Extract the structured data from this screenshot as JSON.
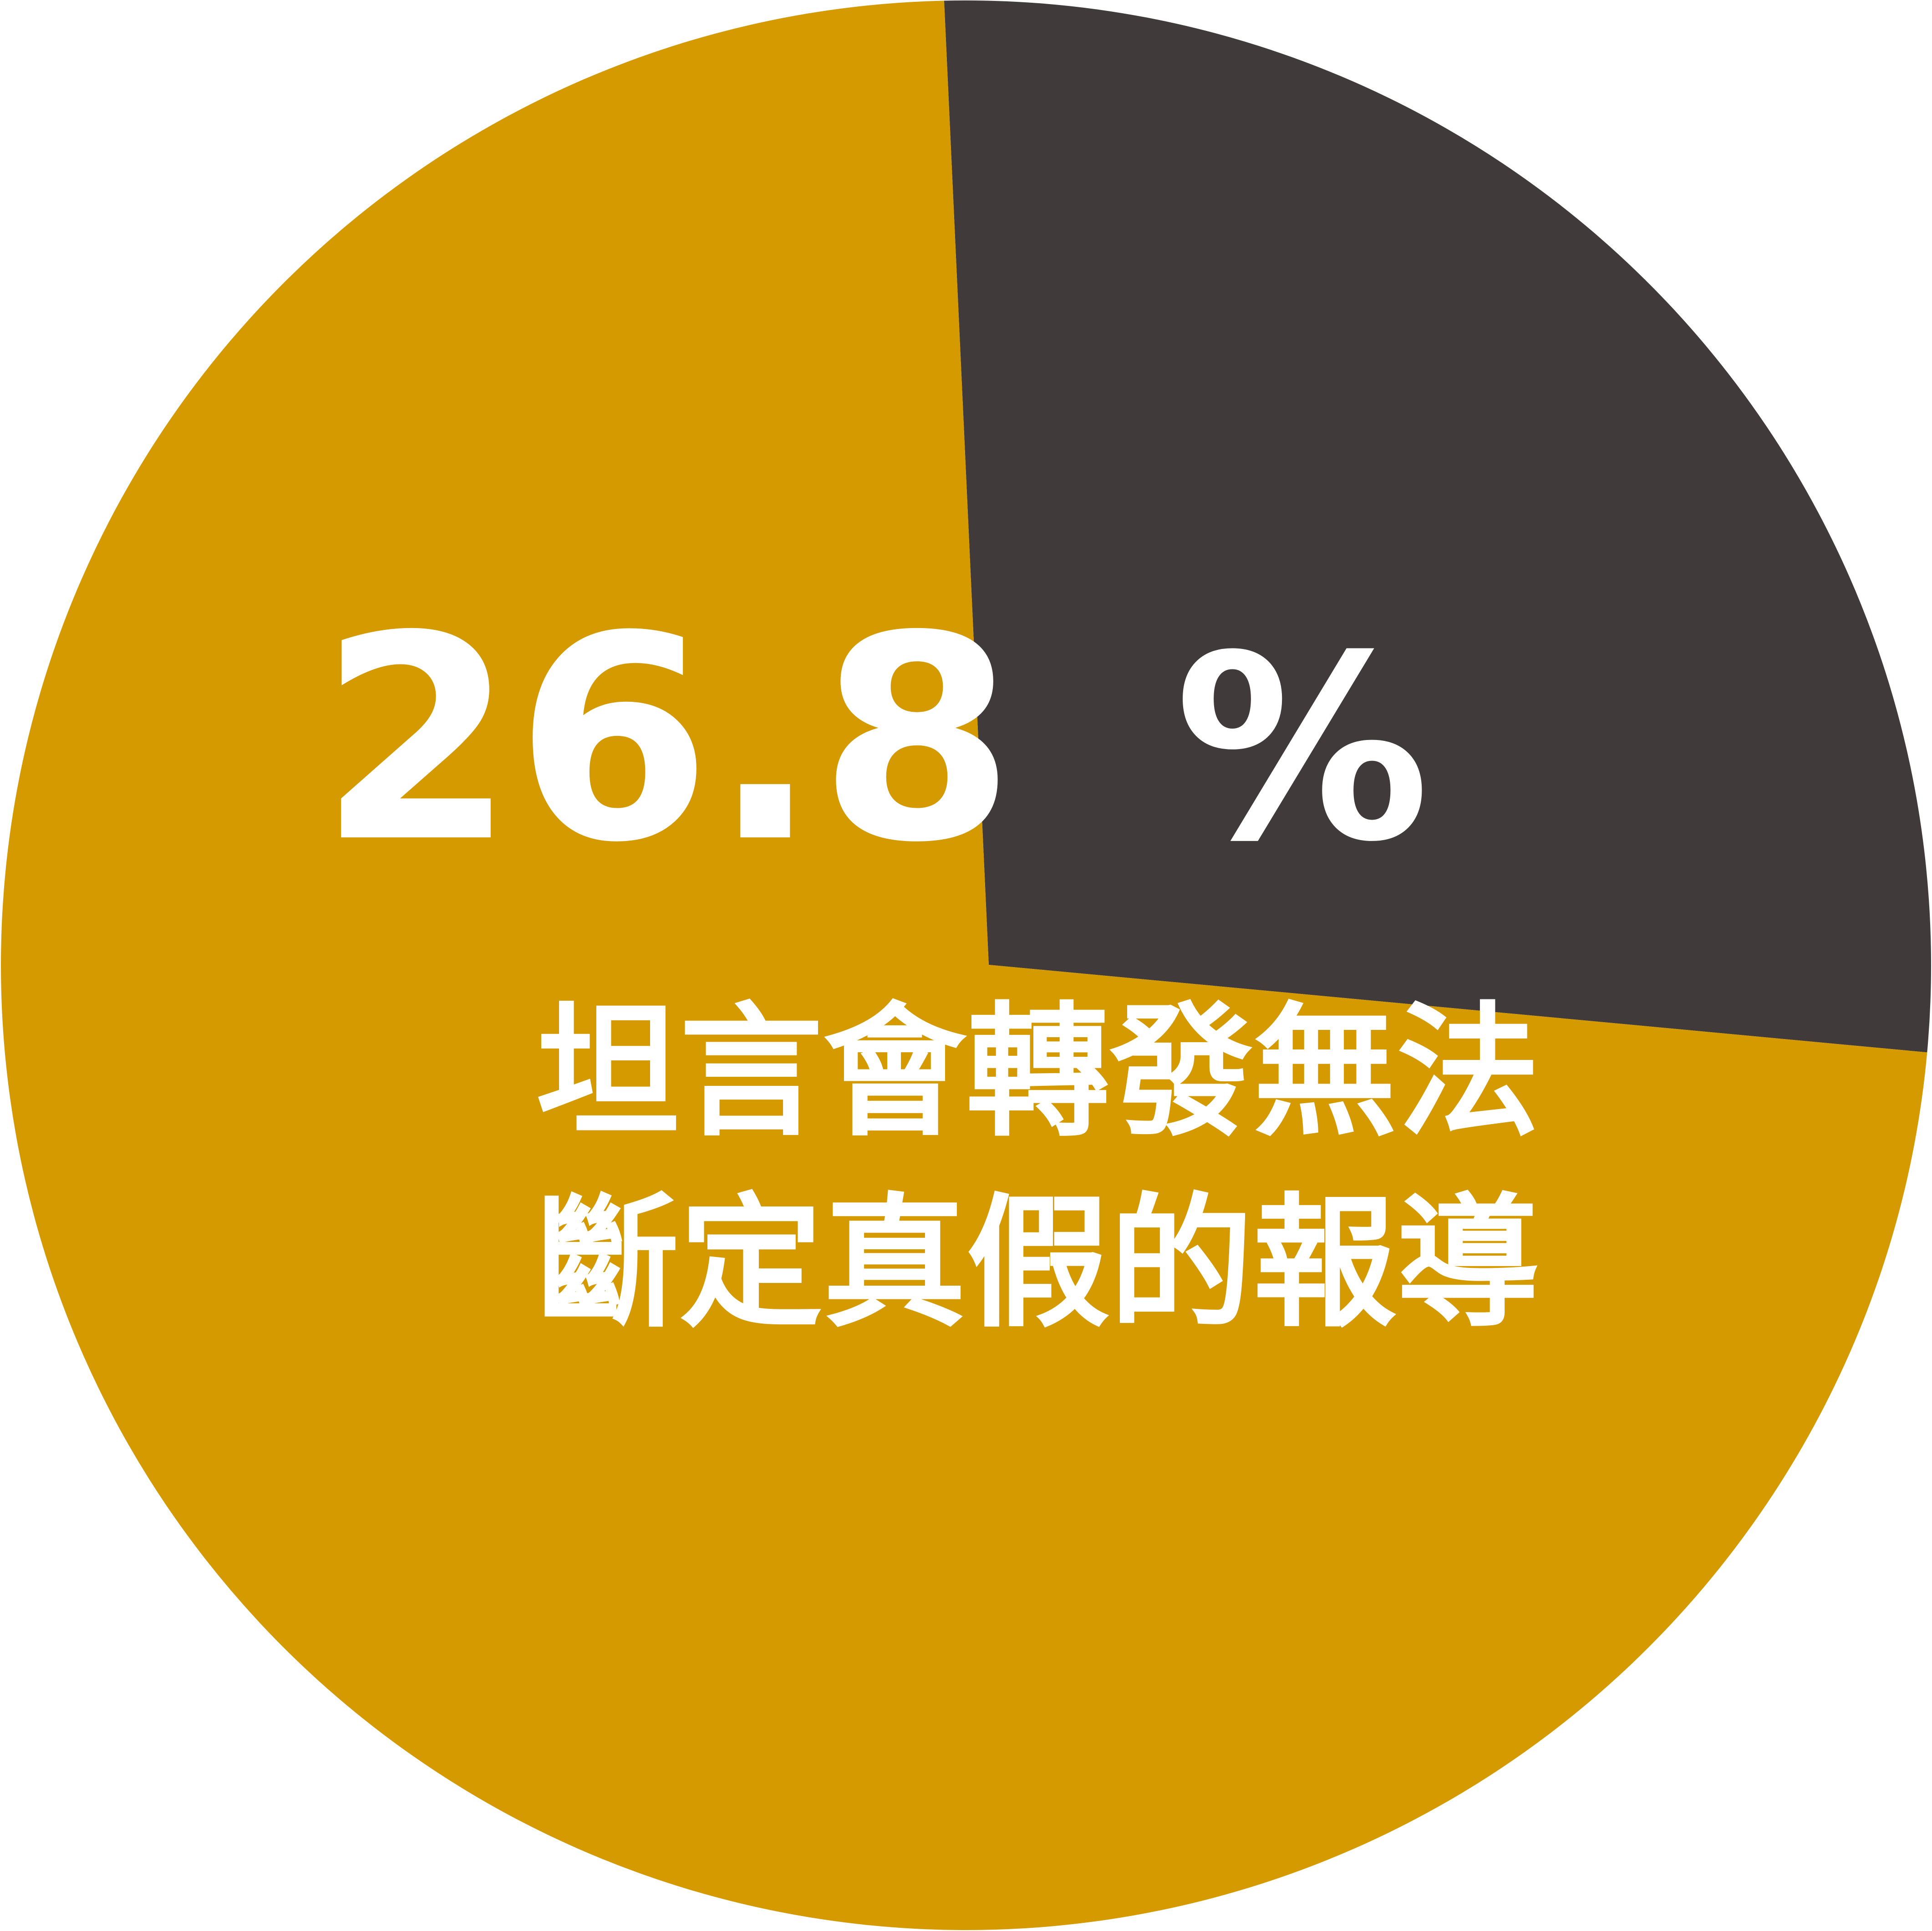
{
  "chart_data": {
    "type": "pie",
    "slices": [
      {
        "value": 26.8,
        "color": "#403a3a"
      },
      {
        "value": 73.2,
        "color": "#d59a00"
      }
    ],
    "data_label": "26.8",
    "data_label_unit": "%",
    "caption_lines": [
      "坦言會轉發無法",
      "斷定真假的報導"
    ]
  }
}
